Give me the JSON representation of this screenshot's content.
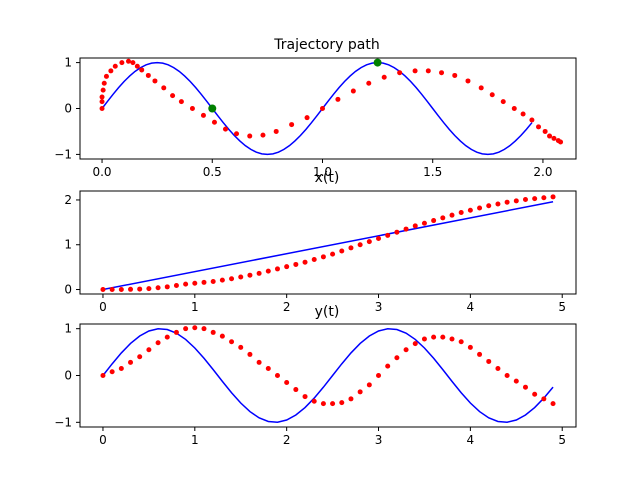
{
  "figure": {
    "background": "#ffffff",
    "line_color": "#0000ff",
    "dot_color": "#ff0000",
    "marker_color": "#008000"
  },
  "chart_data": [
    {
      "type": "line",
      "title": "Trajectory path",
      "xlim": [
        -0.1,
        2.15
      ],
      "ylim": [
        -1.1,
        1.1
      ],
      "xticks": [
        0.0,
        0.5,
        1.0,
        1.5,
        2.0
      ],
      "xtick_labels": [
        "0.0",
        "0.5",
        "1.0",
        "1.5",
        "2.0"
      ],
      "yticks": [
        -1,
        0,
        1
      ],
      "ytick_labels": [
        "−1",
        "0",
        "1"
      ],
      "series": [
        {
          "kind": "line",
          "x": [
            0.0,
            0.025,
            0.05,
            0.075,
            0.1,
            0.125,
            0.15,
            0.175,
            0.2,
            0.225,
            0.25,
            0.275,
            0.3,
            0.325,
            0.35,
            0.375,
            0.4,
            0.425,
            0.45,
            0.475,
            0.5,
            0.525,
            0.55,
            0.575,
            0.6,
            0.625,
            0.65,
            0.675,
            0.7,
            0.725,
            0.75,
            0.775,
            0.8,
            0.825,
            0.85,
            0.875,
            0.9,
            0.925,
            0.95,
            0.975,
            1.0,
            1.025,
            1.05,
            1.075,
            1.1,
            1.125,
            1.15,
            1.175,
            1.2,
            1.225,
            1.25,
            1.275,
            1.3,
            1.325,
            1.35,
            1.375,
            1.4,
            1.425,
            1.45,
            1.475,
            1.5,
            1.525,
            1.55,
            1.575,
            1.6,
            1.625,
            1.65,
            1.675,
            1.7,
            1.725,
            1.75,
            1.775,
            1.8,
            1.825,
            1.85,
            1.875,
            1.9,
            1.925,
            1.95
          ],
          "y": [
            0.0,
            0.156,
            0.309,
            0.454,
            0.588,
            0.707,
            0.809,
            0.891,
            0.951,
            0.988,
            1.0,
            0.988,
            0.951,
            0.891,
            0.809,
            0.707,
            0.588,
            0.454,
            0.309,
            0.156,
            0.0,
            -0.156,
            -0.309,
            -0.454,
            -0.588,
            -0.707,
            -0.809,
            -0.891,
            -0.951,
            -0.988,
            -1.0,
            -0.988,
            -0.951,
            -0.891,
            -0.809,
            -0.707,
            -0.588,
            -0.454,
            -0.309,
            -0.156,
            0.0,
            0.156,
            0.309,
            0.454,
            0.588,
            0.707,
            0.809,
            0.891,
            0.951,
            0.988,
            1.0,
            0.988,
            0.951,
            0.891,
            0.809,
            0.707,
            0.588,
            0.454,
            0.309,
            0.156,
            0.0,
            -0.156,
            -0.309,
            -0.454,
            -0.588,
            -0.707,
            -0.809,
            -0.891,
            -0.951,
            -0.988,
            -1.0,
            -0.988,
            -0.951,
            -0.891,
            -0.809,
            -0.707,
            -0.588,
            -0.454,
            -0.309
          ]
        },
        {
          "kind": "dots",
          "x": [
            0.0,
            0.0,
            0.0,
            0.005,
            0.01,
            0.02,
            0.04,
            0.06,
            0.09,
            0.12,
            0.14,
            0.16,
            0.18,
            0.21,
            0.24,
            0.28,
            0.32,
            0.36,
            0.41,
            0.46,
            0.51,
            0.56,
            0.61,
            0.67,
            0.73,
            0.79,
            0.86,
            0.93,
            1.0,
            1.07,
            1.14,
            1.21,
            1.28,
            1.35,
            1.42,
            1.48,
            1.54,
            1.6,
            1.66,
            1.72,
            1.77,
            1.82,
            1.87,
            1.91,
            1.95,
            1.98,
            2.01,
            2.03,
            2.05,
            2.07,
            2.08
          ],
          "y": [
            0.0,
            0.15,
            0.25,
            0.4,
            0.55,
            0.7,
            0.82,
            0.92,
            1.0,
            1.03,
            1.0,
            0.92,
            0.84,
            0.72,
            0.6,
            0.45,
            0.28,
            0.15,
            0.0,
            -0.15,
            -0.3,
            -0.45,
            -0.55,
            -0.6,
            -0.58,
            -0.5,
            -0.35,
            -0.2,
            0.0,
            0.2,
            0.38,
            0.55,
            0.68,
            0.78,
            0.82,
            0.82,
            0.78,
            0.72,
            0.6,
            0.45,
            0.3,
            0.15,
            0.0,
            -0.12,
            -0.25,
            -0.4,
            -0.5,
            -0.6,
            -0.65,
            -0.7,
            -0.73
          ]
        },
        {
          "kind": "markers",
          "x": [
            0.5,
            1.25
          ],
          "y": [
            0.0,
            1.0
          ]
        }
      ]
    },
    {
      "type": "line",
      "title": "x(t)",
      "xlim": [
        -0.25,
        5.15
      ],
      "ylim": [
        -0.1,
        2.2
      ],
      "xticks": [
        0,
        1,
        2,
        3,
        4,
        5
      ],
      "xtick_labels": [
        "0",
        "1",
        "2",
        "3",
        "4",
        "5"
      ],
      "yticks": [
        0,
        1,
        2
      ],
      "ytick_labels": [
        "0",
        "1",
        "2"
      ],
      "series": [
        {
          "kind": "line",
          "x": [
            0.0,
            4.9
          ],
          "y": [
            0.0,
            1.96
          ]
        },
        {
          "kind": "dots",
          "x": [
            0.0,
            0.1,
            0.2,
            0.3,
            0.4,
            0.5,
            0.6,
            0.7,
            0.8,
            0.9,
            1.0,
            1.1,
            1.2,
            1.3,
            1.4,
            1.5,
            1.6,
            1.7,
            1.8,
            1.9,
            2.0,
            2.1,
            2.2,
            2.3,
            2.4,
            2.5,
            2.6,
            2.7,
            2.8,
            2.9,
            3.0,
            3.1,
            3.2,
            3.3,
            3.4,
            3.5,
            3.6,
            3.7,
            3.8,
            3.9,
            4.0,
            4.1,
            4.2,
            4.3,
            4.4,
            4.5,
            4.6,
            4.7,
            4.8,
            4.9
          ],
          "y": [
            0.0,
            0.0,
            0.0,
            0.005,
            0.01,
            0.02,
            0.04,
            0.06,
            0.09,
            0.12,
            0.14,
            0.16,
            0.18,
            0.21,
            0.24,
            0.28,
            0.32,
            0.36,
            0.41,
            0.46,
            0.51,
            0.56,
            0.61,
            0.67,
            0.73,
            0.79,
            0.86,
            0.93,
            1.0,
            1.07,
            1.14,
            1.21,
            1.28,
            1.35,
            1.42,
            1.48,
            1.54,
            1.6,
            1.66,
            1.72,
            1.77,
            1.82,
            1.87,
            1.91,
            1.95,
            1.98,
            2.01,
            2.03,
            2.05,
            2.07
          ]
        }
      ]
    },
    {
      "type": "line",
      "title": "y(t)",
      "xlim": [
        -0.25,
        5.15
      ],
      "ylim": [
        -1.1,
        1.1
      ],
      "xticks": [
        0,
        1,
        2,
        3,
        4,
        5
      ],
      "xtick_labels": [
        "0",
        "1",
        "2",
        "3",
        "4",
        "5"
      ],
      "yticks": [
        -1,
        0,
        1
      ],
      "ytick_labels": [
        "−1",
        "0",
        "1"
      ],
      "series": [
        {
          "kind": "line",
          "x": [
            0.0,
            0.1,
            0.2,
            0.3,
            0.4,
            0.5,
            0.6,
            0.7,
            0.8,
            0.9,
            1.0,
            1.1,
            1.2,
            1.3,
            1.4,
            1.5,
            1.6,
            1.7,
            1.8,
            1.9,
            2.0,
            2.1,
            2.2,
            2.3,
            2.4,
            2.5,
            2.6,
            2.7,
            2.8,
            2.9,
            3.0,
            3.1,
            3.2,
            3.3,
            3.4,
            3.5,
            3.6,
            3.7,
            3.8,
            3.9,
            4.0,
            4.1,
            4.2,
            4.3,
            4.4,
            4.5,
            4.6,
            4.7,
            4.8,
            4.9
          ],
          "y": [
            0.0,
            0.249,
            0.482,
            0.685,
            0.844,
            0.951,
            0.998,
            0.982,
            0.905,
            0.771,
            0.588,
            0.368,
            0.125,
            -0.125,
            -0.368,
            -0.588,
            -0.771,
            -0.905,
            -0.982,
            -0.998,
            -0.951,
            -0.844,
            -0.685,
            -0.482,
            -0.249,
            0.0,
            0.249,
            0.482,
            0.685,
            0.844,
            0.951,
            0.998,
            0.982,
            0.905,
            0.771,
            0.588,
            0.368,
            0.125,
            -0.125,
            -0.368,
            -0.588,
            -0.771,
            -0.905,
            -0.982,
            -0.998,
            -0.951,
            -0.844,
            -0.685,
            -0.482,
            -0.249
          ]
        },
        {
          "kind": "dots",
          "x": [
            0.0,
            0.1,
            0.2,
            0.3,
            0.4,
            0.5,
            0.6,
            0.7,
            0.8,
            0.9,
            1.0,
            1.1,
            1.2,
            1.3,
            1.4,
            1.5,
            1.6,
            1.7,
            1.8,
            1.9,
            2.0,
            2.1,
            2.2,
            2.3,
            2.4,
            2.5,
            2.6,
            2.7,
            2.8,
            2.9,
            3.0,
            3.1,
            3.2,
            3.3,
            3.4,
            3.5,
            3.6,
            3.7,
            3.8,
            3.9,
            4.0,
            4.1,
            4.2,
            4.3,
            4.4,
            4.5,
            4.6,
            4.7,
            4.8,
            4.9
          ],
          "y": [
            0.0,
            0.08,
            0.15,
            0.28,
            0.4,
            0.55,
            0.7,
            0.82,
            0.92,
            1.0,
            1.02,
            1.0,
            0.92,
            0.84,
            0.72,
            0.6,
            0.45,
            0.28,
            0.15,
            0.0,
            -0.15,
            -0.3,
            -0.45,
            -0.55,
            -0.6,
            -0.6,
            -0.58,
            -0.5,
            -0.35,
            -0.2,
            0.0,
            0.2,
            0.38,
            0.55,
            0.68,
            0.78,
            0.82,
            0.82,
            0.78,
            0.72,
            0.6,
            0.45,
            0.3,
            0.15,
            0.0,
            -0.12,
            -0.25,
            -0.4,
            -0.5,
            -0.6
          ]
        }
      ]
    }
  ]
}
